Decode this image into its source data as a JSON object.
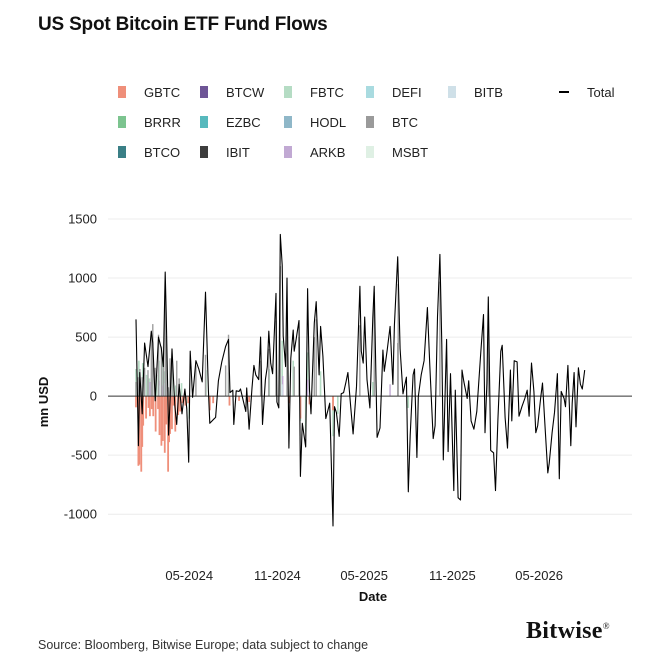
{
  "title": "US Spot Bitcoin ETF Fund Flows",
  "source": "Source: Bloomberg, Bitwise Europe; data subject to change",
  "brand": "Bitwise",
  "brand_mark": "®",
  "colors": {
    "GBTC": "#ef8f7a",
    "BTCW": "#6e5596",
    "FBTC": "#b5dcc4",
    "DEFI": "#a9dbe0",
    "BITB": "#cfe0e8",
    "BRRR": "#7cc48f",
    "EZBC": "#57b9bd",
    "HODL": "#8fb7c8",
    "BTC": "#9a9a9a",
    "BTCO": "#3a7f86",
    "IBIT": "#3d3d3d",
    "ARKB": "#c1a9d3",
    "MSBT": "#dff0e4",
    "Total": "#000000"
  },
  "chart_data": {
    "type": "bar",
    "title": "US Spot Bitcoin ETF Fund Flows",
    "xlabel": "Date",
    "ylabel": "mn USD",
    "ylim": [
      -1100,
      1500
    ],
    "yticks": [
      1500,
      1000,
      500,
      0,
      -500,
      -1000
    ],
    "xlim": [
      "2024-01-11",
      "2026-09-30"
    ],
    "xticks": [
      {
        "date": "2024-05-01",
        "label": "05-2024"
      },
      {
        "date": "2024-11-01",
        "label": "11-2024"
      },
      {
        "date": "2025-05-01",
        "label": "05-2025"
      },
      {
        "date": "2025-11-01",
        "label": "11-2025"
      },
      {
        "date": "2026-05-01",
        "label": "05-2026"
      }
    ],
    "grid": "horizontal",
    "legend_position": "top",
    "legend": [
      "GBTC",
      "BTCW",
      "FBTC",
      "DEFI",
      "BITB",
      "Total",
      "BRRR",
      "EZBC",
      "HODL",
      "BTC",
      "BTCO",
      "IBIT",
      "ARKB",
      "MSBT"
    ],
    "series_note": "Daily net flows per fund (stacked bars) with Total shown as a line",
    "total": [
      [
        "2024-01-11",
        650
      ],
      [
        "2024-01-16",
        -420
      ],
      [
        "2024-01-19",
        200
      ],
      [
        "2024-01-24",
        -150
      ],
      [
        "2024-01-29",
        450
      ],
      [
        "2024-02-05",
        250
      ],
      [
        "2024-02-12",
        550
      ],
      [
        "2024-02-15",
        450
      ],
      [
        "2024-02-20",
        -40
      ],
      [
        "2024-02-27",
        500
      ],
      [
        "2024-03-04",
        400
      ],
      [
        "2024-03-08",
        250
      ],
      [
        "2024-03-12",
        1050
      ],
      [
        "2024-03-14",
        700
      ],
      [
        "2024-03-19",
        -330
      ],
      [
        "2024-03-22",
        -50
      ],
      [
        "2024-03-26",
        400
      ],
      [
        "2024-04-01",
        -80
      ],
      [
        "2024-04-05",
        -240
      ],
      [
        "2024-04-10",
        100
      ],
      [
        "2024-04-16",
        -150
      ],
      [
        "2024-04-22",
        60
      ],
      [
        "2024-04-26",
        -110
      ],
      [
        "2024-04-30",
        -560
      ],
      [
        "2024-05-03",
        380
      ],
      [
        "2024-05-08",
        -10
      ],
      [
        "2024-05-15",
        300
      ],
      [
        "2024-05-21",
        230
      ],
      [
        "2024-05-28",
        120
      ],
      [
        "2024-06-04",
        880
      ],
      [
        "2024-06-10",
        50
      ],
      [
        "2024-06-13",
        -230
      ],
      [
        "2024-06-20",
        -200
      ],
      [
        "2024-06-25",
        -180
      ],
      [
        "2024-07-01",
        130
      ],
      [
        "2024-07-08",
        290
      ],
      [
        "2024-07-16",
        420
      ],
      [
        "2024-07-22",
        480
      ],
      [
        "2024-07-25",
        30
      ],
      [
        "2024-07-31",
        50
      ],
      [
        "2024-08-02",
        -240
      ],
      [
        "2024-08-07",
        45
      ],
      [
        "2024-08-13",
        40
      ],
      [
        "2024-08-16",
        60
      ],
      [
        "2024-08-27",
        -130
      ],
      [
        "2024-08-29",
        70
      ],
      [
        "2024-09-03",
        -280
      ],
      [
        "2024-09-09",
        70
      ],
      [
        "2024-09-13",
        260
      ],
      [
        "2024-09-17",
        180
      ],
      [
        "2024-09-23",
        140
      ],
      [
        "2024-09-27",
        500
      ],
      [
        "2024-10-01",
        -240
      ],
      [
        "2024-10-07",
        140
      ],
      [
        "2024-10-11",
        250
      ],
      [
        "2024-10-14",
        550
      ],
      [
        "2024-10-18",
        280
      ],
      [
        "2024-10-22",
        190
      ],
      [
        "2024-10-29",
        870
      ],
      [
        "2024-10-31",
        -50
      ],
      [
        "2024-11-04",
        -100
      ],
      [
        "2024-11-07",
        1370
      ],
      [
        "2024-11-11",
        1110
      ],
      [
        "2024-11-13",
        510
      ],
      [
        "2024-11-18",
        250
      ],
      [
        "2024-11-21",
        1000
      ],
      [
        "2024-11-25",
        -440
      ],
      [
        "2024-11-29",
        320
      ],
      [
        "2024-12-04",
        560
      ],
      [
        "2024-12-06",
        380
      ],
      [
        "2024-12-10",
        480
      ],
      [
        "2024-12-16",
        640
      ],
      [
        "2024-12-19",
        -680
      ],
      [
        "2024-12-23",
        -230
      ],
      [
        "2024-12-30",
        -430
      ],
      [
        "2025-01-03",
        910
      ],
      [
        "2025-01-07",
        50
      ],
      [
        "2025-01-10",
        -150
      ],
      [
        "2025-01-17",
        620
      ],
      [
        "2025-01-21",
        800
      ],
      [
        "2025-01-27",
        180
      ],
      [
        "2025-01-30",
        590
      ],
      [
        "2025-02-04",
        340
      ],
      [
        "2025-02-10",
        -190
      ],
      [
        "2025-02-18",
        -60
      ],
      [
        "2025-02-25",
        -1100
      ],
      [
        "2025-02-28",
        -90
      ],
      [
        "2025-03-04",
        -140
      ],
      [
        "2025-03-10",
        -340
      ],
      [
        "2025-03-14",
        20
      ],
      [
        "2025-03-19",
        30
      ],
      [
        "2025-03-24",
        120
      ],
      [
        "2025-03-28",
        200
      ],
      [
        "2025-04-03",
        -100
      ],
      [
        "2025-04-08",
        -320
      ],
      [
        "2025-04-15",
        80
      ],
      [
        "2025-04-22",
        930
      ],
      [
        "2025-04-25",
        380
      ],
      [
        "2025-04-29",
        280
      ],
      [
        "2025-05-02",
        670
      ],
      [
        "2025-05-07",
        140
      ],
      [
        "2025-05-13",
        -100
      ],
      [
        "2025-05-19",
        660
      ],
      [
        "2025-05-22",
        930
      ],
      [
        "2025-05-28",
        -350
      ],
      [
        "2025-06-03",
        -270
      ],
      [
        "2025-06-09",
        390
      ],
      [
        "2025-06-12",
        210
      ],
      [
        "2025-06-18",
        390
      ],
      [
        "2025-06-24",
        590
      ],
      [
        "2025-06-30",
        100
      ],
      [
        "2025-07-03",
        600
      ],
      [
        "2025-07-10",
        1180
      ],
      [
        "2025-07-11",
        1030
      ],
      [
        "2025-07-15",
        400
      ],
      [
        "2025-07-21",
        20
      ],
      [
        "2025-07-28",
        160
      ],
      [
        "2025-08-01",
        -810
      ],
      [
        "2025-08-05",
        -330
      ],
      [
        "2025-08-11",
        180
      ],
      [
        "2025-08-14",
        230
      ],
      [
        "2025-08-19",
        -520
      ],
      [
        "2025-08-22",
        -5
      ],
      [
        "2025-08-28",
        180
      ],
      [
        "2025-09-03",
        300
      ],
      [
        "2025-09-10",
        750
      ],
      [
        "2025-09-15",
        260
      ],
      [
        "2025-09-22",
        -360
      ],
      [
        "2025-09-26",
        -250
      ],
      [
        "2025-10-01",
        670
      ],
      [
        "2025-10-06",
        1200
      ],
      [
        "2025-10-10",
        440
      ],
      [
        "2025-10-13",
        -540
      ],
      [
        "2025-10-20",
        480
      ],
      [
        "2025-10-23",
        -470
      ],
      [
        "2025-10-28",
        190
      ],
      [
        "2025-11-04",
        -800
      ],
      [
        "2025-11-07",
        50
      ],
      [
        "2025-11-13",
        -860
      ],
      [
        "2025-11-18",
        -880
      ],
      [
        "2025-11-21",
        220
      ],
      [
        "2025-11-25",
        120
      ],
      [
        "2025-12-02",
        -20
      ],
      [
        "2025-12-05",
        130
      ],
      [
        "2025-12-10",
        -210
      ],
      [
        "2025-12-16",
        -280
      ],
      [
        "2025-12-22",
        -130
      ],
      [
        "2025-12-30",
        360
      ],
      [
        "2026-01-05",
        690
      ],
      [
        "2026-01-08",
        -310
      ],
      [
        "2026-01-12",
        110
      ],
      [
        "2026-01-15",
        840
      ],
      [
        "2026-01-20",
        -460
      ],
      [
        "2026-01-26",
        -480
      ],
      [
        "2026-01-30",
        -800
      ],
      [
        "2026-02-04",
        -200
      ],
      [
        "2026-02-10",
        380
      ],
      [
        "2026-02-13",
        430
      ],
      [
        "2026-02-19",
        -180
      ],
      [
        "2026-02-24",
        -440
      ],
      [
        "2026-03-02",
        220
      ],
      [
        "2026-03-05",
        -210
      ],
      [
        "2026-03-10",
        300
      ],
      [
        "2026-03-16",
        290
      ],
      [
        "2026-03-20",
        -170
      ],
      [
        "2026-03-26",
        -90
      ],
      [
        "2026-04-01",
        -20
      ],
      [
        "2026-04-06",
        50
      ],
      [
        "2026-04-10",
        -170
      ],
      [
        "2026-04-15",
        280
      ],
      [
        "2026-04-20",
        40
      ],
      [
        "2026-04-24",
        -310
      ],
      [
        "2026-04-28",
        -250
      ],
      [
        "2026-05-04",
        -20
      ],
      [
        "2026-05-08",
        110
      ],
      [
        "2026-05-14",
        -310
      ],
      [
        "2026-05-19",
        -650
      ],
      [
        "2026-05-22",
        -570
      ],
      [
        "2026-05-28",
        -310
      ],
      [
        "2026-06-02",
        -140
      ],
      [
        "2026-06-08",
        190
      ],
      [
        "2026-06-12",
        -700
      ],
      [
        "2026-06-16",
        40
      ],
      [
        "2026-06-22",
        -20
      ],
      [
        "2026-06-25",
        -90
      ],
      [
        "2026-06-30",
        260
      ],
      [
        "2026-07-06",
        -420
      ],
      [
        "2026-07-09",
        -60
      ],
      [
        "2026-07-13",
        200
      ],
      [
        "2026-07-17",
        -260
      ],
      [
        "2026-07-22",
        240
      ],
      [
        "2026-07-26",
        100
      ],
      [
        "2026-07-30",
        60
      ],
      [
        "2026-08-04",
        220
      ]
    ],
    "gbtc": [
      [
        "2024-01-11",
        -95
      ],
      [
        "2024-01-16",
        -590
      ],
      [
        "2024-01-18",
        -580
      ],
      [
        "2024-01-22",
        -640
      ],
      [
        "2024-01-24",
        -430
      ],
      [
        "2024-01-26",
        -250
      ],
      [
        "2024-02-01",
        -190
      ],
      [
        "2024-02-06",
        -100
      ],
      [
        "2024-02-09",
        -170
      ],
      [
        "2024-02-13",
        -110
      ],
      [
        "2024-02-16",
        -170
      ],
      [
        "2024-02-21",
        -300
      ],
      [
        "2024-02-26",
        -110
      ],
      [
        "2024-02-29",
        -330
      ],
      [
        "2024-03-04",
        -420
      ],
      [
        "2024-03-07",
        -380
      ],
      [
        "2024-03-11",
        -480
      ],
      [
        "2024-03-14",
        -240
      ],
      [
        "2024-03-18",
        -640
      ],
      [
        "2024-03-20",
        -390
      ],
      [
        "2024-03-22",
        -320
      ],
      [
        "2024-03-26",
        -280
      ],
      [
        "2024-03-29",
        -80
      ],
      [
        "2024-04-02",
        -300
      ],
      [
        "2024-04-08",
        -160
      ],
      [
        "2024-04-12",
        -130
      ],
      [
        "2024-04-17",
        -60
      ],
      [
        "2024-04-23",
        -80
      ],
      [
        "2024-04-29",
        -60
      ],
      [
        "2024-06-13",
        -120
      ],
      [
        "2024-06-20",
        -60
      ],
      [
        "2024-07-24",
        -80
      ],
      [
        "2024-08-13",
        -40
      ],
      [
        "2024-09-03",
        -50
      ],
      [
        "2024-11-25",
        -60
      ],
      [
        "2024-12-19",
        -190
      ],
      [
        "2025-01-07",
        -70
      ],
      [
        "2025-02-25",
        -120
      ]
    ],
    "ibit": [
      [
        "2024-01-11",
        120
      ],
      [
        "2024-01-16",
        160
      ],
      [
        "2024-01-19",
        230
      ],
      [
        "2024-01-24",
        160
      ],
      [
        "2024-01-29",
        240
      ],
      [
        "2024-02-05",
        220
      ],
      [
        "2024-02-12",
        500
      ],
      [
        "2024-02-15",
        610
      ],
      [
        "2024-02-20",
        240
      ],
      [
        "2024-02-27",
        520
      ],
      [
        "2024-03-04",
        420
      ],
      [
        "2024-03-08",
        300
      ],
      [
        "2024-03-12",
        850
      ],
      [
        "2024-03-14",
        510
      ],
      [
        "2024-03-19",
        75
      ],
      [
        "2024-03-22",
        320
      ],
      [
        "2024-03-26",
        320
      ],
      [
        "2024-04-05",
        300
      ],
      [
        "2024-04-10",
        150
      ],
      [
        "2024-04-22",
        25
      ],
      [
        "2024-05-15",
        260
      ],
      [
        "2024-06-04",
        350
      ],
      [
        "2024-07-16",
        260
      ],
      [
        "2024-07-22",
        520
      ],
      [
        "2024-09-27",
        300
      ],
      [
        "2024-10-14",
        400
      ],
      [
        "2024-10-29",
        640
      ],
      [
        "2024-11-07",
        1100
      ],
      [
        "2024-11-21",
        650
      ],
      [
        "2024-12-06",
        250
      ],
      [
        "2024-12-16",
        500
      ],
      [
        "2025-01-17",
        500
      ],
      [
        "2025-01-21",
        650
      ],
      [
        "2025-04-22",
        600
      ],
      [
        "2025-05-22",
        880
      ],
      [
        "2025-07-10",
        450
      ],
      [
        "2025-07-11",
        950
      ],
      [
        "2025-10-06",
        970
      ],
      [
        "2026-01-15",
        640
      ]
    ],
    "fbtc": [
      [
        "2024-01-11",
        230
      ],
      [
        "2024-01-17",
        300
      ],
      [
        "2024-01-25",
        280
      ],
      [
        "2024-02-02",
        180
      ],
      [
        "2024-02-08",
        150
      ],
      [
        "2024-02-13",
        300
      ],
      [
        "2024-02-23",
        180
      ],
      [
        "2024-02-28",
        300
      ],
      [
        "2024-03-05",
        360
      ],
      [
        "2024-03-11",
        210
      ],
      [
        "2024-03-13",
        280
      ],
      [
        "2024-03-21",
        40
      ],
      [
        "2024-03-27",
        210
      ],
      [
        "2024-04-03",
        90
      ],
      [
        "2024-04-15",
        110
      ],
      [
        "2024-06-05",
        220
      ],
      [
        "2024-07-22",
        200
      ],
      [
        "2024-10-15",
        230
      ],
      [
        "2024-11-07",
        230
      ],
      [
        "2024-11-11",
        470
      ],
      [
        "2024-12-04",
        300
      ],
      [
        "2025-01-03",
        370
      ],
      [
        "2025-01-30",
        210
      ],
      [
        "2025-05-19",
        120
      ]
    ],
    "fbtc_neg": [
      [
        "2024-04-25",
        -70
      ],
      [
        "2024-05-01",
        -190
      ],
      [
        "2024-12-19",
        -210
      ],
      [
        "2024-12-30",
        -300
      ],
      [
        "2025-02-25",
        -340
      ],
      [
        "2025-03-07",
        -150
      ],
      [
        "2025-08-01",
        -100
      ]
    ],
    "arkb": [
      [
        "2024-02-09",
        120
      ],
      [
        "2024-02-28",
        130
      ],
      [
        "2024-03-05",
        90
      ],
      [
        "2024-03-12",
        120
      ],
      [
        "2024-11-12",
        170
      ],
      [
        "2025-01-03",
        140
      ],
      [
        "2025-06-24",
        100
      ]
    ],
    "bitb": [
      [
        "2024-02-12",
        80
      ],
      [
        "2024-02-28",
        90
      ],
      [
        "2024-03-11",
        110
      ],
      [
        "2024-11-11",
        100
      ]
    ]
  }
}
